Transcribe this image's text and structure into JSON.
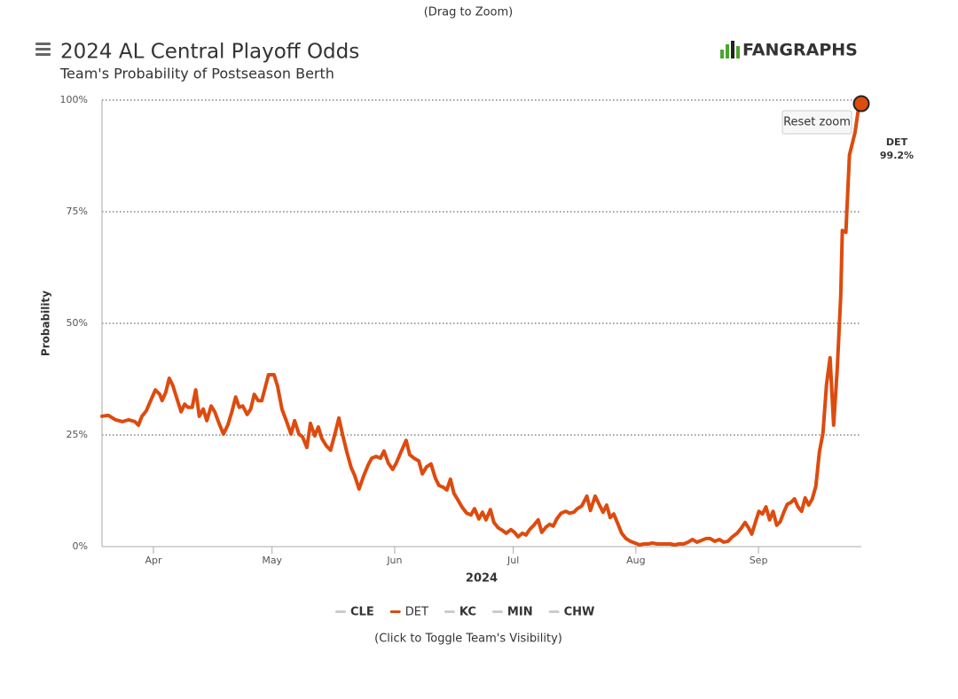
{
  "chart_data": {
    "type": "line",
    "hint_top": "(Drag to Zoom)",
    "title": "2024 AL Central Playoff Odds",
    "subtitle": "Team's Probability of Postseason Berth",
    "logo": "FANGRAPHS",
    "reset_button": "Reset zoom",
    "y_label": "Probability",
    "x_label": "2024",
    "hint_bottom": "(Click to Toggle Team's Visibility)",
    "xlim": [
      79,
      271
    ],
    "xticks": [
      {
        "value": 92,
        "label": "Apr"
      },
      {
        "value": 122,
        "label": "May"
      },
      {
        "value": 153,
        "label": "Jun"
      },
      {
        "value": 183,
        "label": "Jul"
      },
      {
        "value": 214,
        "label": "Aug"
      },
      {
        "value": 245,
        "label": "Sep"
      }
    ],
    "ylim": [
      0,
      100
    ],
    "yticks": [
      {
        "value": 0,
        "label": "0%"
      },
      {
        "value": 25,
        "label": "25%"
      },
      {
        "value": 50,
        "label": "50%"
      },
      {
        "value": 75,
        "label": "75%"
      },
      {
        "value": 100,
        "label": "100%"
      }
    ],
    "grid": true,
    "x": [
      79.0,
      80.6,
      82.4,
      84.2,
      85.7,
      87.3,
      88.2,
      89.1,
      90.2,
      91.3,
      92.5,
      93.6,
      94.2,
      95.1,
      96.0,
      96.9,
      98.1,
      99.0,
      99.9,
      100.7,
      101.8,
      102.7,
      103.6,
      104.6,
      105.5,
      106.6,
      107.5,
      108.6,
      109.7,
      110.8,
      111.9,
      112.8,
      113.7,
      114.6,
      115.7,
      116.6,
      117.5,
      118.5,
      119.4,
      121.1,
      122.5,
      123.4,
      124.5,
      125.6,
      126.8,
      127.7,
      128.8,
      129.7,
      130.8,
      131.7,
      132.8,
      133.7,
      134.6,
      135.7,
      136.8,
      138.0,
      138.9,
      139.8,
      140.9,
      142.0,
      142.9,
      144.0,
      145.1,
      146.3,
      147.2,
      148.3,
      149.4,
      150.3,
      151.4,
      152.5,
      153.4,
      154.6,
      155.9,
      156.8,
      157.9,
      159.1,
      160.0,
      161.1,
      162.2,
      163.3,
      164.2,
      165.3,
      166.2,
      167.1,
      168.0,
      169.1,
      170.0,
      171.2,
      172.3,
      173.2,
      174.3,
      175.2,
      176.1,
      177.2,
      178.1,
      179.2,
      180.3,
      181.2,
      182.4,
      183.3,
      184.2,
      185.3,
      186.2,
      187.1,
      188.2,
      189.3,
      190.2,
      191.3,
      192.2,
      193.1,
      194.0,
      195.1,
      196.3,
      197.2,
      198.3,
      199.2,
      200.3,
      201.6,
      202.5,
      203.7,
      204.8,
      205.7,
      206.6,
      207.5,
      208.4,
      209.3,
      210.4,
      211.5,
      212.6,
      213.8,
      214.9,
      216.0,
      217.1,
      218.2,
      219.4,
      220.5,
      221.6,
      222.7,
      223.8,
      224.9,
      226.1,
      227.2,
      228.3,
      229.4,
      230.6,
      231.7,
      232.8,
      233.9,
      235.1,
      236.2,
      237.3,
      238.4,
      239.6,
      240.7,
      241.6,
      242.5,
      243.3,
      244.2,
      245.1,
      246.0,
      246.9,
      247.8,
      248.7,
      249.6,
      250.5,
      251.4,
      252.3,
      253.2,
      254.1,
      255.0,
      255.9,
      256.8,
      257.7,
      258.6,
      259.5,
      260.4,
      261.3,
      262.2,
      263.1,
      264.0,
      264.9,
      265.8,
      266.2,
      267.1,
      268.0,
      269.4,
      270.3,
      271.0
    ],
    "series": [
      {
        "name": "DET",
        "color": "#dd4b0f",
        "last_value_label": "99.2%",
        "values": [
          29.2,
          29.4,
          28.4,
          28.0,
          28.4,
          28.0,
          27.2,
          29.2,
          30.4,
          32.7,
          35.1,
          34.1,
          32.7,
          34.5,
          37.7,
          36.1,
          32.7,
          30.2,
          31.9,
          31.2,
          31.2,
          35.1,
          29.2,
          30.8,
          28.2,
          31.5,
          30.2,
          27.6,
          25.2,
          27.2,
          30.4,
          33.5,
          31.2,
          31.5,
          29.6,
          30.8,
          34.1,
          32.7,
          32.7,
          38.5,
          38.5,
          35.9,
          30.8,
          28.2,
          25.2,
          28.2,
          25.2,
          24.6,
          22.2,
          27.6,
          24.8,
          26.8,
          24.2,
          22.6,
          21.6,
          25.6,
          28.8,
          25.2,
          21.2,
          17.7,
          15.9,
          12.9,
          15.7,
          18.3,
          19.8,
          20.2,
          19.8,
          21.4,
          18.7,
          17.3,
          18.7,
          21.2,
          23.8,
          20.6,
          19.8,
          19.2,
          16.3,
          17.9,
          18.5,
          15.3,
          13.7,
          13.3,
          12.7,
          15.1,
          11.9,
          10.3,
          8.9,
          7.5,
          7.1,
          8.5,
          6.2,
          7.7,
          6.0,
          8.3,
          5.4,
          4.2,
          3.6,
          3.0,
          3.8,
          3.2,
          2.2,
          3.0,
          2.6,
          3.8,
          4.8,
          6.0,
          3.2,
          4.4,
          5.0,
          4.6,
          6.2,
          7.5,
          7.9,
          7.5,
          7.7,
          8.5,
          9.1,
          11.3,
          8.1,
          11.3,
          9.3,
          7.7,
          9.3,
          6.5,
          7.3,
          5.4,
          3.0,
          1.8,
          1.2,
          0.8,
          0.4,
          0.6,
          0.6,
          0.8,
          0.6,
          0.6,
          0.6,
          0.6,
          0.4,
          0.6,
          0.6,
          1.0,
          1.6,
          1.0,
          1.4,
          1.8,
          1.8,
          1.2,
          1.6,
          1.0,
          1.2,
          2.2,
          3.0,
          4.2,
          5.4,
          4.2,
          2.8,
          5.4,
          7.9,
          7.3,
          8.9,
          6.0,
          7.9,
          4.8,
          5.6,
          7.7,
          9.5,
          9.9,
          10.7,
          8.9,
          7.9,
          10.9,
          9.3,
          10.7,
          13.5,
          21.2,
          25.4,
          36.3,
          42.3,
          27.2,
          39.5,
          56.2,
          70.8,
          70.4,
          87.7,
          92.7,
          98.2,
          99.2
        ]
      }
    ],
    "legend_items": [
      {
        "name": "CLE",
        "visible": false
      },
      {
        "name": "DET",
        "visible": true
      },
      {
        "name": "KC",
        "visible": false
      },
      {
        "name": "MIN",
        "visible": false
      },
      {
        "name": "CHW",
        "visible": false
      }
    ],
    "hidden_color": "#cccccc"
  }
}
